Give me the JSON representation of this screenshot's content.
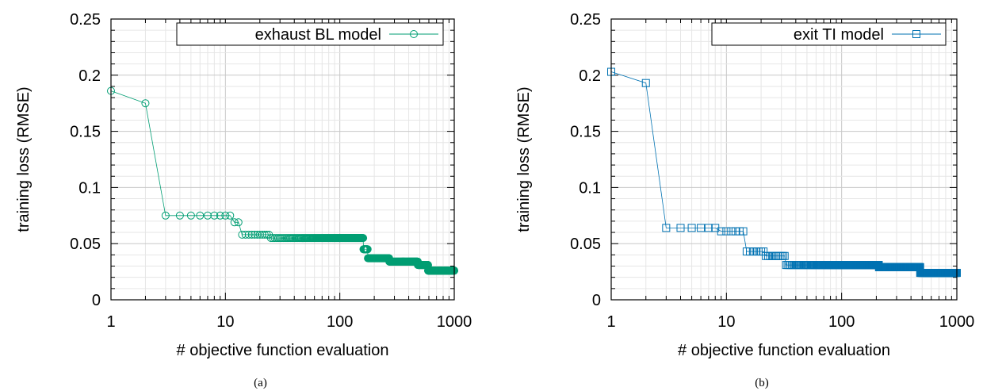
{
  "chart_data": [
    {
      "type": "line",
      "xscale": "log",
      "xlim": [
        1,
        1000
      ],
      "ylim": [
        0,
        0.25
      ],
      "xticks": [
        "1",
        "10",
        "100",
        "1000"
      ],
      "yticks": [
        "0",
        "0.05",
        "0.1",
        "0.15",
        "0.2",
        "0.25"
      ],
      "xlabel": "# objective function evaluation",
      "ylabel": "training loss (RMSE)",
      "caption": "(a)",
      "grid": true,
      "legend_position": "top-right",
      "color": "#009e73",
      "marker": "circle",
      "series": [
        {
          "name": "exhaust BL model",
          "steps": [
            {
              "from": 1,
              "to": 1,
              "y": 0.186
            },
            {
              "from": 2,
              "to": 2,
              "y": 0.175
            },
            {
              "from": 3,
              "to": 11,
              "y": 0.075
            },
            {
              "from": 12,
              "to": 13,
              "y": 0.069
            },
            {
              "from": 14,
              "to": 24,
              "y": 0.058
            },
            {
              "from": 25,
              "to": 160,
              "y": 0.055
            },
            {
              "from": 161,
              "to": 175,
              "y": 0.045
            },
            {
              "from": 176,
              "to": 270,
              "y": 0.037
            },
            {
              "from": 271,
              "to": 480,
              "y": 0.034
            },
            {
              "from": 481,
              "to": 590,
              "y": 0.031
            },
            {
              "from": 591,
              "to": 1000,
              "y": 0.026
            }
          ]
        }
      ]
    },
    {
      "type": "line",
      "xscale": "log",
      "xlim": [
        1,
        1000
      ],
      "ylim": [
        0,
        0.25
      ],
      "xticks": [
        "1",
        "10",
        "100",
        "1000"
      ],
      "yticks": [
        "0",
        "0.05",
        "0.1",
        "0.15",
        "0.2",
        "0.25"
      ],
      "xlabel": "# objective function evaluation",
      "ylabel": "training loss (RMSE)",
      "caption": "(b)",
      "grid": true,
      "legend_position": "top-right",
      "color": "#0072b2",
      "marker": "square",
      "series": [
        {
          "name": "exit TI model",
          "steps": [
            {
              "from": 1,
              "to": 1,
              "y": 0.203
            },
            {
              "from": 2,
              "to": 2,
              "y": 0.193
            },
            {
              "from": 3,
              "to": 8,
              "y": 0.064
            },
            {
              "from": 9,
              "to": 14,
              "y": 0.061
            },
            {
              "from": 15,
              "to": 21,
              "y": 0.043
            },
            {
              "from": 22,
              "to": 32,
              "y": 0.039
            },
            {
              "from": 33,
              "to": 210,
              "y": 0.031
            },
            {
              "from": 211,
              "to": 480,
              "y": 0.029
            },
            {
              "from": 481,
              "to": 1000,
              "y": 0.024
            }
          ]
        }
      ]
    }
  ]
}
